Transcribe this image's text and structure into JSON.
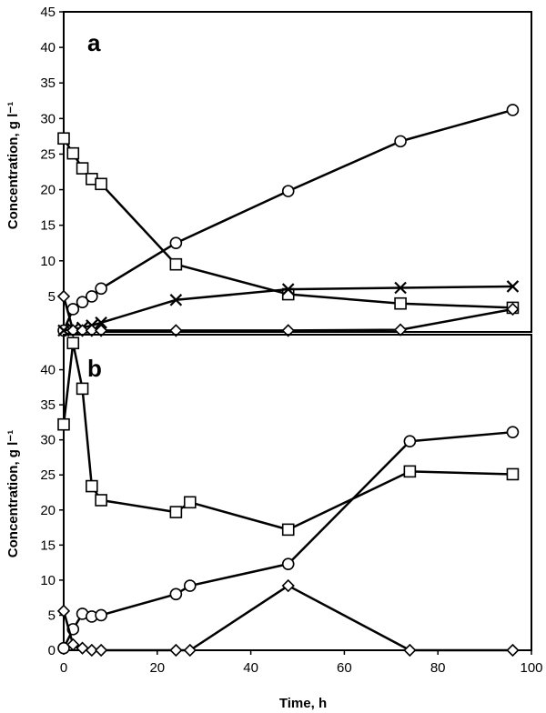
{
  "chart_data": [
    {
      "type": "line",
      "panel_label": "a",
      "ylabel": "Concentration, g l⁻¹",
      "xlim": [
        0,
        100
      ],
      "ylim": [
        0,
        45
      ],
      "y_ticks": [
        "5",
        "10",
        "15",
        "20",
        "25",
        "30",
        "35",
        "40",
        "45"
      ],
      "grid": false,
      "series": [
        {
          "marker": "circle",
          "x": [
            0,
            2,
            4,
            6,
            8,
            24,
            48,
            72,
            96
          ],
          "values": [
            0.2,
            3.2,
            4.2,
            5.0,
            6.1,
            12.5,
            19.8,
            26.8,
            31.2
          ]
        },
        {
          "marker": "square",
          "x": [
            0,
            2,
            4,
            6,
            8,
            24,
            48,
            72,
            96
          ],
          "values": [
            27.2,
            25.1,
            23.0,
            21.5,
            20.8,
            9.5,
            5.3,
            4.0,
            3.4
          ]
        },
        {
          "marker": "cross",
          "x": [
            0,
            2,
            4,
            6,
            8,
            24,
            48,
            72,
            96
          ],
          "values": [
            0.2,
            0.4,
            0.6,
            0.9,
            1.3,
            4.5,
            6.0,
            6.2,
            6.4
          ]
        },
        {
          "marker": "diamond",
          "x": [
            0,
            2,
            4,
            6,
            8,
            24,
            48,
            72,
            96
          ],
          "values": [
            5.0,
            0.2,
            0.2,
            0.2,
            0.2,
            0.2,
            0.2,
            0.3,
            3.2
          ]
        }
      ]
    },
    {
      "type": "line",
      "panel_label": "b",
      "ylabel": "Concentration, g l⁻¹",
      "xlabel": "Time, h",
      "xlim": [
        0,
        100
      ],
      "ylim": [
        0,
        45
      ],
      "x_ticks": [
        "0",
        "20",
        "40",
        "60",
        "80",
        "100"
      ],
      "y_ticks": [
        "0",
        "5",
        "10",
        "15",
        "20",
        "25",
        "30",
        "35",
        "40"
      ],
      "grid": false,
      "series": [
        {
          "marker": "circle",
          "x": [
            0,
            2,
            4,
            6,
            8,
            24,
            27,
            48,
            74,
            96
          ],
          "values": [
            0.3,
            3.0,
            5.2,
            4.8,
            5.0,
            8.0,
            9.2,
            12.3,
            29.8,
            31.1
          ]
        },
        {
          "marker": "square",
          "x": [
            0,
            2,
            4,
            6,
            8,
            24,
            27,
            48,
            74,
            96
          ],
          "values": [
            32.2,
            43.8,
            37.3,
            23.4,
            21.4,
            19.7,
            21.1,
            17.2,
            25.5,
            25.1
          ]
        },
        {
          "marker": "diamond",
          "x": [
            0,
            2,
            4,
            6,
            8,
            24,
            27,
            48,
            74,
            96
          ],
          "values": [
            5.6,
            0.8,
            0.3,
            0.0,
            0.0,
            0.0,
            0.0,
            9.2,
            0.0,
            0.0
          ]
        }
      ]
    }
  ]
}
